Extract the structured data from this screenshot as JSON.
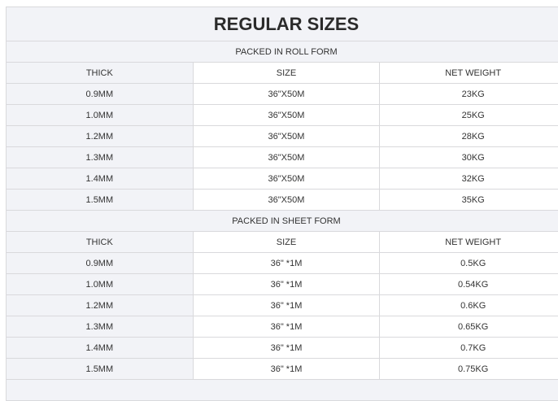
{
  "title": "REGULAR SIZES",
  "sections": [
    {
      "heading": "PACKED IN ROLL FORM",
      "columns": [
        "THICK",
        "SIZE",
        "NET WEIGHT"
      ],
      "rows": [
        [
          "0.9MM",
          "36\"X50M",
          "23KG"
        ],
        [
          "1.0MM",
          "36\"X50M",
          "25KG"
        ],
        [
          "1.2MM",
          "36\"X50M",
          "28KG"
        ],
        [
          "1.3MM",
          "36\"X50M",
          "30KG"
        ],
        [
          "1.4MM",
          "36\"X50M",
          "32KG"
        ],
        [
          "1.5MM",
          "36\"X50M",
          "35KG"
        ]
      ]
    },
    {
      "heading": "PACKED IN SHEET FORM",
      "columns": [
        "THICK",
        "SIZE",
        "NET WEIGHT"
      ],
      "rows": [
        [
          "0.9MM",
          "36\" *1M",
          "0.5KG"
        ],
        [
          "1.0MM",
          "36\" *1M",
          "0.54KG"
        ],
        [
          "1.2MM",
          "36\" *1M",
          "0.6KG"
        ],
        [
          "1.3MM",
          "36\" *1M",
          "0.65KG"
        ],
        [
          "1.4MM",
          "36\" *1M",
          "0.7KG"
        ],
        [
          "1.5MM",
          "36\" *1M",
          "0.75KG"
        ]
      ]
    }
  ]
}
